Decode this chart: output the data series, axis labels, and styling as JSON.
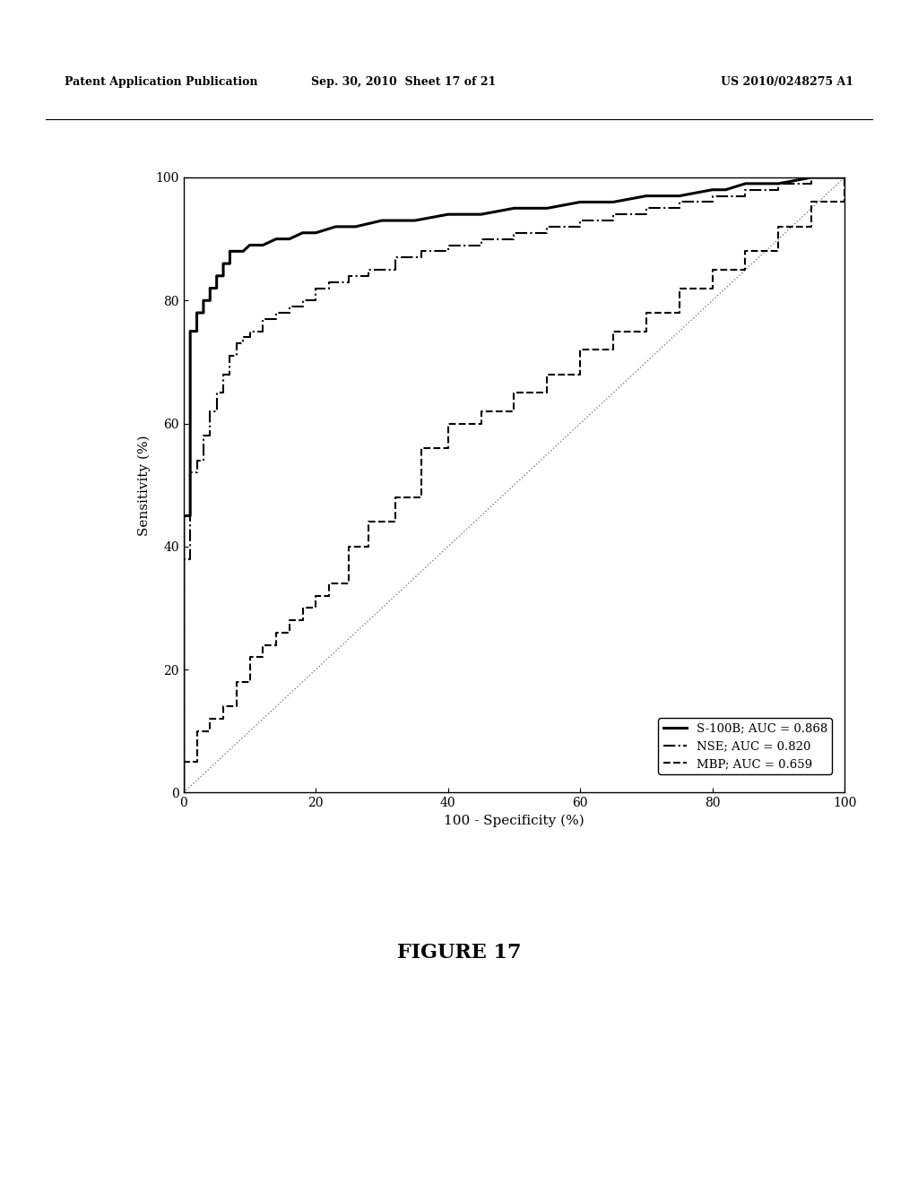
{
  "title": "",
  "xlabel": "100 - Specificity (%)",
  "ylabel": "Sensitivity (%)",
  "xlim": [
    0,
    100
  ],
  "ylim": [
    0,
    100
  ],
  "xticks": [
    0,
    20,
    40,
    60,
    80,
    100
  ],
  "yticks": [
    0,
    20,
    40,
    60,
    80,
    100
  ],
  "background_color": "#ffffff",
  "legend_entries": [
    {
      "label": "S-100B; AUC = 0.868",
      "linestyle": "solid",
      "linewidth": 2.2
    },
    {
      "label": "NSE; AUC = 0.820",
      "linestyle": "dashdot",
      "linewidth": 1.5
    },
    {
      "label": "MBP; AUC = 0.659",
      "linestyle": "dashed",
      "linewidth": 1.5
    }
  ],
  "s100b_x": [
    0,
    0,
    1,
    1,
    2,
    2,
    3,
    3,
    4,
    4,
    5,
    5,
    6,
    6,
    7,
    7,
    9,
    10,
    12,
    14,
    16,
    18,
    20,
    23,
    26,
    30,
    35,
    40,
    45,
    50,
    55,
    60,
    65,
    70,
    75,
    80,
    82,
    85,
    90,
    95,
    100
  ],
  "s100b_y": [
    0,
    45,
    45,
    75,
    75,
    78,
    78,
    80,
    80,
    82,
    82,
    84,
    84,
    86,
    86,
    88,
    88,
    89,
    89,
    90,
    90,
    91,
    91,
    92,
    92,
    93,
    93,
    94,
    94,
    95,
    95,
    96,
    96,
    97,
    97,
    98,
    98,
    99,
    99,
    100,
    100
  ],
  "nse_x": [
    0,
    0,
    1,
    1,
    2,
    2,
    3,
    3,
    4,
    4,
    5,
    5,
    6,
    6,
    7,
    7,
    8,
    8,
    9,
    9,
    10,
    10,
    12,
    12,
    14,
    14,
    16,
    16,
    18,
    18,
    20,
    20,
    22,
    22,
    25,
    25,
    28,
    28,
    32,
    32,
    36,
    36,
    40,
    40,
    45,
    45,
    50,
    50,
    55,
    55,
    60,
    60,
    65,
    65,
    70,
    70,
    75,
    75,
    80,
    80,
    85,
    85,
    90,
    90,
    95,
    95,
    100
  ],
  "nse_y": [
    0,
    38,
    38,
    52,
    52,
    54,
    54,
    58,
    58,
    62,
    62,
    65,
    65,
    68,
    68,
    71,
    71,
    73,
    73,
    74,
    74,
    75,
    75,
    77,
    77,
    78,
    78,
    79,
    79,
    80,
    80,
    82,
    82,
    83,
    83,
    84,
    84,
    85,
    85,
    87,
    87,
    88,
    88,
    89,
    89,
    90,
    90,
    91,
    91,
    92,
    92,
    93,
    93,
    94,
    94,
    95,
    95,
    96,
    96,
    97,
    97,
    98,
    98,
    99,
    99,
    100,
    100
  ],
  "mbp_x": [
    0,
    0,
    2,
    2,
    4,
    4,
    6,
    6,
    8,
    8,
    10,
    10,
    12,
    12,
    14,
    14,
    16,
    16,
    18,
    18,
    20,
    20,
    22,
    22,
    25,
    25,
    28,
    28,
    32,
    32,
    36,
    36,
    40,
    40,
    45,
    45,
    50,
    50,
    55,
    55,
    60,
    60,
    65,
    65,
    70,
    70,
    75,
    75,
    80,
    80,
    85,
    85,
    90,
    90,
    95,
    95,
    100,
    100
  ],
  "mbp_y": [
    0,
    5,
    5,
    10,
    10,
    12,
    12,
    14,
    14,
    18,
    18,
    22,
    22,
    24,
    24,
    26,
    26,
    28,
    28,
    30,
    30,
    32,
    32,
    34,
    34,
    40,
    40,
    44,
    44,
    48,
    48,
    56,
    56,
    60,
    60,
    62,
    62,
    65,
    65,
    68,
    68,
    72,
    72,
    75,
    75,
    78,
    78,
    82,
    82,
    85,
    85,
    88,
    88,
    92,
    92,
    96,
    96,
    100
  ],
  "header_left": "Patent Application Publication",
  "header_center": "Sep. 30, 2010  Sheet 17 of 21",
  "header_right": "US 2010/0248275 A1",
  "figure_label": "FIGURE 17"
}
